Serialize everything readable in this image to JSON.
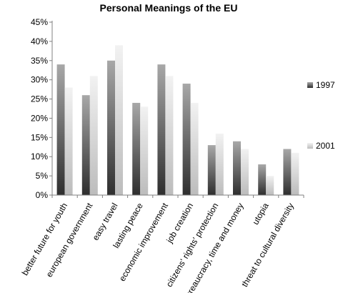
{
  "chart_data": {
    "type": "bar",
    "title": "Personal Meanings of the EU",
    "categories": [
      "better future for youth",
      "european government",
      "easy travel",
      "lasting peace",
      "economic improvement",
      "job creation",
      "citizens' rights' protection",
      "bureaucracy, time and money",
      "utopia",
      "threat to cultural diversity"
    ],
    "series": [
      {
        "name": "1997",
        "values": [
          34,
          26,
          35,
          24,
          34,
          29,
          13,
          14,
          8,
          12
        ],
        "color": "#3a3a3a"
      },
      {
        "name": "2001",
        "values": [
          28,
          31,
          39,
          23,
          31,
          24,
          16,
          12,
          5,
          11
        ],
        "color": "#d0d0d0"
      }
    ],
    "yticks": [
      "0%",
      "5%",
      "10%",
      "15%",
      "20%",
      "25%",
      "30%",
      "35%",
      "40%",
      "45%"
    ],
    "ylim": [
      0,
      45
    ],
    "xlabel": "",
    "ylabel": "",
    "grid": false,
    "legend": "right"
  }
}
